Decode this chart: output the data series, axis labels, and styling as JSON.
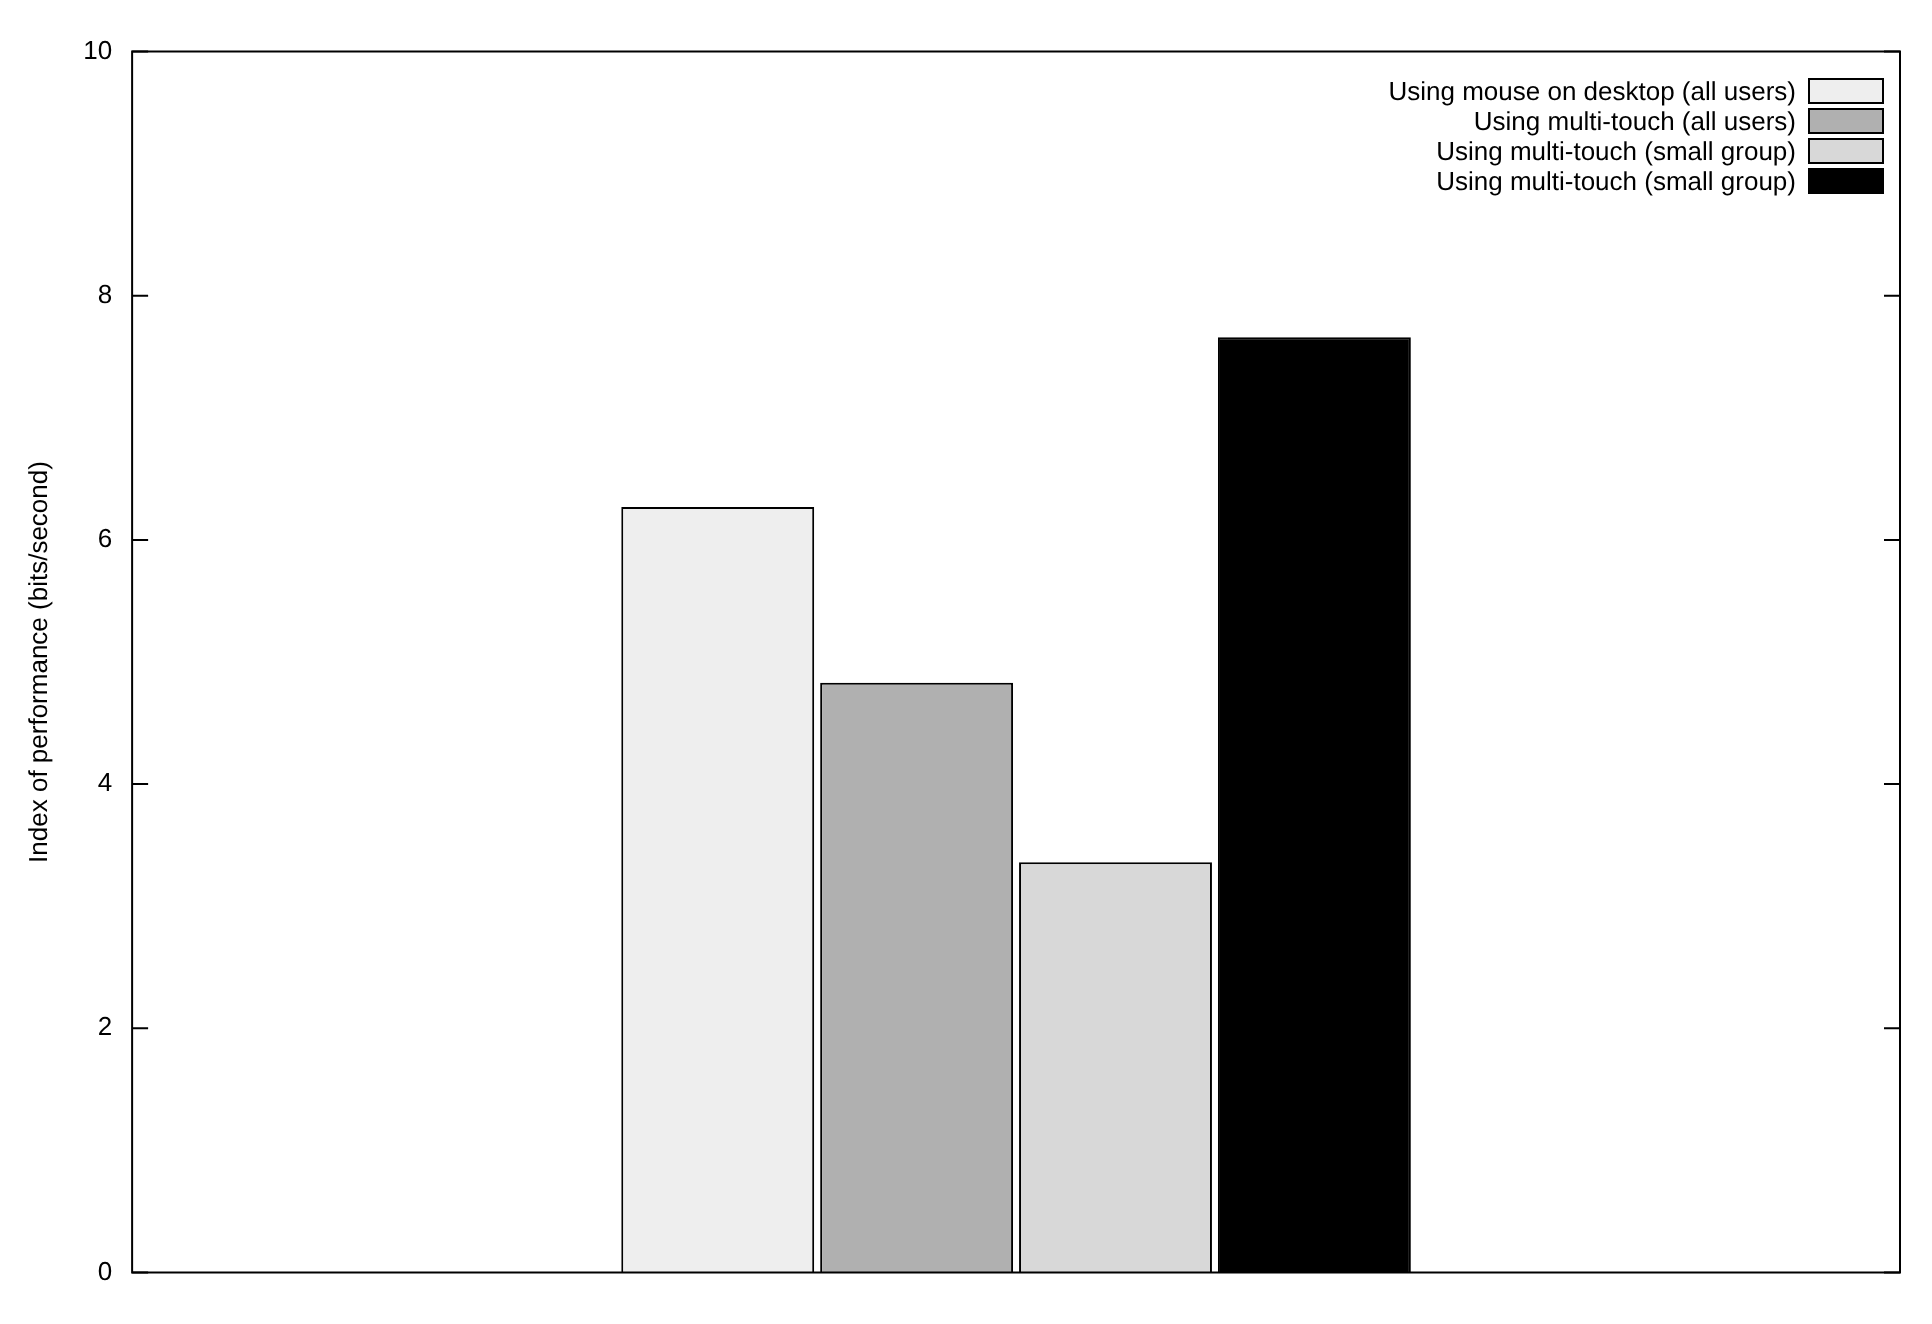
{
  "chart_data": {
    "type": "bar",
    "ylabel": "Index of performance (bits/second)",
    "categories": [
      null
    ],
    "ylim": [
      0,
      10
    ],
    "yticks": [
      0,
      2,
      4,
      6,
      8,
      10
    ],
    "grid": false,
    "legend": "top right",
    "tick_labels": "y",
    "series": [
      {
        "name": "Using mouse on desktop (all users)",
        "color": "#eeeeee",
        "values": [
          6.27
        ]
      },
      {
        "name": "Using multi-touch (all users)",
        "color": "#b0b0b0",
        "values": [
          4.83
        ]
      },
      {
        "name": "Using multi-touch (small group)",
        "color": "#d8d8d8",
        "values": [
          3.36
        ]
      },
      {
        "name": "Using multi-touch (small group)",
        "color": "#000000",
        "values": [
          7.66
        ]
      }
    ]
  }
}
